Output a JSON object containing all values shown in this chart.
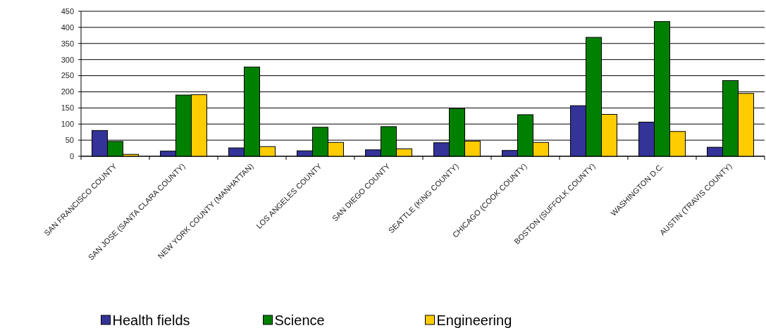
{
  "chart_data": {
    "type": "bar",
    "categories": [
      "SAN FRANCISCO COUNTY",
      "SAN JOSE (SANTA CLARA COUNTY)",
      "NEW YORK COUNTY (MANHATTAN)",
      "LOS ANGELES COUNTY",
      "SAN DIEGO COUNTY",
      "SEATTLE (KING COUNTY)",
      "CHICAGO (COOK COUNTY)",
      "BOSTON (SUFFOLK COUNTY)",
      "WASHINGTON D.C.",
      "AUSTIN (TRAVIS COUNTY)"
    ],
    "series": [
      {
        "name": "Health fields",
        "color": "#333399",
        "values": [
          80,
          16,
          26,
          17,
          20,
          42,
          18,
          157,
          106,
          28
        ]
      },
      {
        "name": "Science",
        "color": "#008000",
        "values": [
          46,
          190,
          277,
          90,
          92,
          148,
          129,
          369,
          418,
          235
        ]
      },
      {
        "name": "Engineering",
        "color": "#ffcc00",
        "values": [
          6,
          191,
          30,
          43,
          23,
          47,
          43,
          130,
          77,
          195
        ]
      }
    ],
    "ylim": [
      0,
      450
    ],
    "yticks": [
      0,
      50,
      100,
      150,
      200,
      250,
      300,
      350,
      400,
      450
    ],
    "grid": "y",
    "legend": "bottom"
  }
}
